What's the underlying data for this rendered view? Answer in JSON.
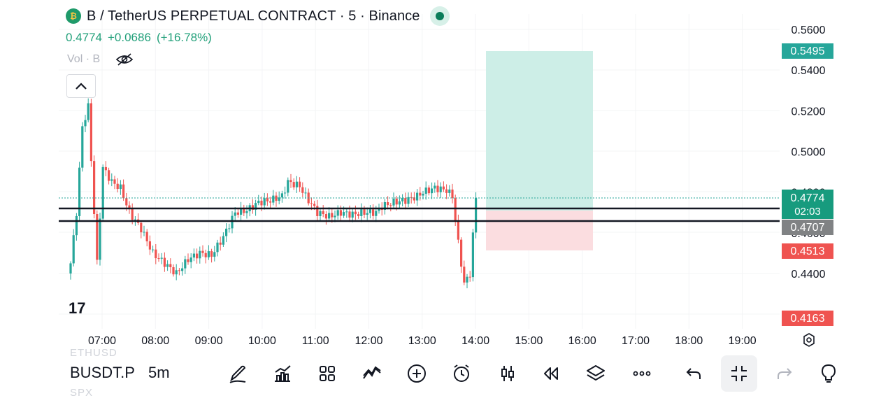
{
  "header": {
    "symbol_title": "B / TetherUS PERPETUAL CONTRACT · 5 · Binance",
    "last_price": "0.4774",
    "change": "+0.0686",
    "change_pct": "(+16.78%)",
    "volume_label": "Vol · B",
    "logo_glyph": "₿"
  },
  "colors": {
    "up": "#26a69a",
    "down": "#ef5350",
    "text": "#131722",
    "profit_zone": "#cdeee7",
    "loss_zone": "#fbdde0"
  },
  "price_scale": {
    "labels": [
      "0.5600",
      "0.5400",
      "0.5200",
      "0.5000",
      "0.4800",
      "0.4600",
      "0.4400"
    ],
    "badges": {
      "target": "0.5495",
      "last": "0.4774",
      "countdown": "02:03",
      "entry": "0.4707",
      "stop": "0.4513",
      "low": "0.4163"
    }
  },
  "time_axis": {
    "labels": [
      "07:00",
      "08:00",
      "09:00",
      "10:00",
      "11:00",
      "12:00",
      "13:00",
      "14:00",
      "15:00",
      "16:00",
      "17:00",
      "18:00",
      "19:00"
    ]
  },
  "chart_data": {
    "type": "candlestick",
    "ylim": [
      0.41,
      0.57
    ],
    "interval": "5m",
    "horizontal_lines": [
      0.4755,
      0.4694
    ],
    "position": {
      "entry": 0.4707,
      "target": 0.5495,
      "stop": 0.4513,
      "from": "14:10",
      "to": "16:10"
    }
  },
  "toolbar": {
    "symbol": "BUSDT.P",
    "ghost_top": "ETHUSD",
    "ghost_bottom": "SPX",
    "timeframe": "5m",
    "tools": [
      "draw-icon",
      "indicators-icon",
      "templates-icon",
      "compare-icon",
      "add-icon",
      "alert-icon",
      "candle-type-icon",
      "replay-icon",
      "layers-icon",
      "more-icon",
      "undo-icon",
      "collapse-icon",
      "redo-icon",
      "bulb-icon"
    ]
  },
  "branding": {
    "logo": "17"
  }
}
